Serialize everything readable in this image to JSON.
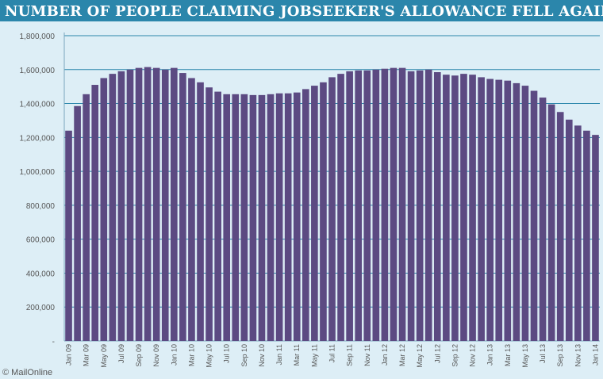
{
  "chart_data": {
    "type": "bar",
    "title": "NUMBER OF PEOPLE CLAIMING JOBSEEKER'S ALLOWANCE FELL AGAIN",
    "xlabel": "",
    "ylabel": "",
    "ylim": [
      0,
      1800000
    ],
    "yticks": [
      0,
      200000,
      400000,
      600000,
      800000,
      1000000,
      1200000,
      1400000,
      1600000,
      1800000
    ],
    "ytick_labels": [
      "-",
      "200,000",
      "400,000",
      "600,000",
      "800,000",
      "1,000,000",
      "1,200,000",
      "1,400,000",
      "1,600,000",
      "1,800,000"
    ],
    "grid": true,
    "bar_color": "#5c4a82",
    "grid_color": "#2b86ab",
    "categories": [
      "Jan 09",
      "Feb 09",
      "Mar 09",
      "Apr 09",
      "May 09",
      "Jun 09",
      "Jul 09",
      "Aug 09",
      "Sep 09",
      "Oct 09",
      "Nov 09",
      "Dec 09",
      "Jan 10",
      "Feb 10",
      "Mar 10",
      "Apr 10",
      "May 10",
      "Jun 10",
      "Jul 10",
      "Aug 10",
      "Sep 10",
      "Oct 10",
      "Nov 10",
      "Dec 10",
      "Jan 11",
      "Feb 11",
      "Mar 11",
      "Apr 11",
      "May 11",
      "Jun 11",
      "Jul 11",
      "Aug 11",
      "Sep 11",
      "Oct 11",
      "Nov 11",
      "Dec 11",
      "Jan 12",
      "Feb 12",
      "Mar 12",
      "Apr 12",
      "May 12",
      "Jun 12",
      "Jul 12",
      "Aug 12",
      "Sep 12",
      "Oct 12",
      "Nov 12",
      "Dec 12",
      "Jan 13",
      "Feb 13",
      "Mar 13",
      "Apr 13",
      "May 13",
      "Jun 13",
      "Jul 13",
      "Aug 13",
      "Sep 13",
      "Oct 13",
      "Nov 13",
      "Dec 13",
      "Jan 14"
    ],
    "tick_labels": [
      "Jan 09",
      "",
      "Mar 09",
      "",
      "May 09",
      "",
      "Jul 09",
      "",
      "Sep 09",
      "",
      "Nov 09",
      "",
      "Jan 10",
      "",
      "Mar 10",
      "",
      "May 10",
      "",
      "Jul 10",
      "",
      "Sep 10",
      "",
      "Nov 10",
      "",
      "Jan 11",
      "",
      "Mar 11",
      "",
      "May 11",
      "",
      "Jul 11",
      "",
      "Sep 11",
      "",
      "Nov 11",
      "",
      "Jan 12",
      "",
      "Mar 12",
      "",
      "May 12",
      "",
      "Jul 12",
      "",
      "Sep 12",
      "",
      "Nov 12",
      "",
      "Jan 13",
      "",
      "Mar 13",
      "",
      "May 13",
      "",
      "Jul 13",
      "",
      "Sep 13",
      "",
      "Nov 13",
      "",
      "Jan 14"
    ],
    "values": [
      1240000,
      1385000,
      1455000,
      1510000,
      1550000,
      1575000,
      1590000,
      1600000,
      1610000,
      1615000,
      1610000,
      1600000,
      1610000,
      1580000,
      1550000,
      1525000,
      1495000,
      1470000,
      1455000,
      1455000,
      1455000,
      1450000,
      1450000,
      1455000,
      1460000,
      1460000,
      1465000,
      1485000,
      1505000,
      1525000,
      1555000,
      1575000,
      1590000,
      1595000,
      1595000,
      1600000,
      1605000,
      1610000,
      1610000,
      1590000,
      1595000,
      1600000,
      1585000,
      1570000,
      1565000,
      1575000,
      1570000,
      1555000,
      1545000,
      1540000,
      1535000,
      1520000,
      1505000,
      1475000,
      1435000,
      1395000,
      1350000,
      1305000,
      1270000,
      1240000,
      1215000
    ]
  },
  "credit": "© MailOnline"
}
